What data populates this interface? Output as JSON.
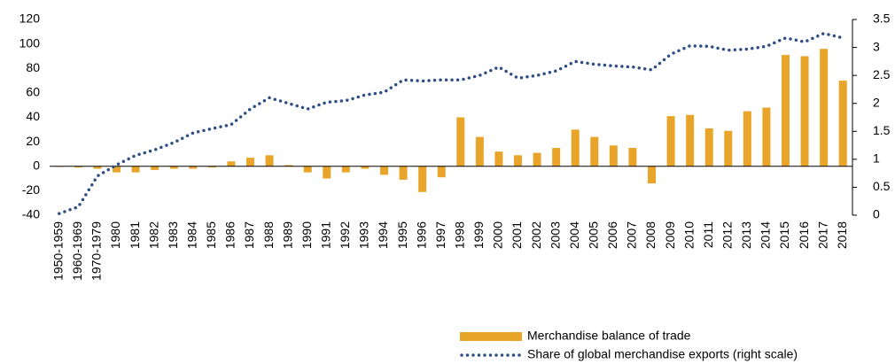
{
  "chart_data": {
    "type": "bar",
    "categories": [
      "1950-1959",
      "1960-1969",
      "1970-1979",
      "1980",
      "1981",
      "1982",
      "1983",
      "1984",
      "1985",
      "1986",
      "1987",
      "1988",
      "1989",
      "1990",
      "1991",
      "1992",
      "1993",
      "1994",
      "1995",
      "1996",
      "1997",
      "1998",
      "1999",
      "2000",
      "2001",
      "2002",
      "2003",
      "2004",
      "2005",
      "2006",
      "2007",
      "2008",
      "2009",
      "2010",
      "2011",
      "2012",
      "2013",
      "2014",
      "2015",
      "2016",
      "2017",
      "2018"
    ],
    "series": [
      {
        "name": "Merchandise balance of trade",
        "type": "bar",
        "color": "#e8a52a",
        "values": [
          -0.5,
          -1,
          -2,
          -5,
          -5,
          -3,
          -2,
          -2,
          -1,
          4,
          7,
          9,
          1,
          -5,
          -10,
          -5,
          -2,
          -7,
          -11,
          -21,
          -9,
          40,
          24,
          12,
          9,
          11,
          15,
          30,
          24,
          17,
          15,
          -14,
          41,
          42,
          31,
          29,
          45,
          48,
          91,
          90,
          96,
          70
        ]
      },
      {
        "name": "Share of global merchandise exports (right scale)",
        "type": "line",
        "axis": "y2",
        "color": "#2e4f86",
        "values": [
          0.03,
          0.15,
          0.7,
          0.9,
          1.07,
          1.17,
          1.3,
          1.47,
          1.55,
          1.62,
          1.9,
          2.1,
          2.0,
          1.9,
          2.02,
          2.05,
          2.15,
          2.2,
          2.42,
          2.4,
          2.42,
          2.42,
          2.5,
          2.65,
          2.45,
          2.5,
          2.58,
          2.75,
          2.7,
          2.67,
          2.65,
          2.6,
          2.88,
          3.03,
          3.02,
          2.95,
          2.97,
          3.02,
          3.17,
          3.1,
          3.25,
          3.17
        ]
      }
    ],
    "ylim": [
      -40,
      120
    ],
    "yticks": [
      -40,
      -20,
      0,
      20,
      40,
      60,
      80,
      100,
      120
    ],
    "y2lim": [
      0,
      3.5
    ],
    "y2ticks": [
      0,
      0.5,
      1,
      1.5,
      2,
      2.5,
      3,
      3.5
    ],
    "legend": "bottom-right"
  }
}
